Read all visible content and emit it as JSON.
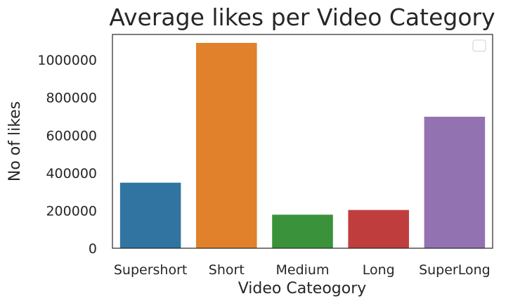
{
  "chart_data": {
    "type": "bar",
    "title": "Average likes per Video Category",
    "xlabel": "Video Cateogory",
    "ylabel": "No of likes",
    "categories": [
      "Supershort",
      "Short",
      "Medium",
      "Long",
      "SuperLong"
    ],
    "values": [
      348000,
      1090000,
      178000,
      203000,
      698000
    ],
    "colors": [
      "#3274a1",
      "#e1812c",
      "#3a923a",
      "#c03d3e",
      "#9372b2"
    ],
    "ylim": [
      0,
      1090000
    ],
    "yticks": [
      0,
      200000,
      400000,
      600000,
      800000,
      1000000
    ],
    "ytick_labels": [
      "0",
      "200000",
      "400000",
      "600000",
      "800000",
      "1000000"
    ],
    "grid": false,
    "legend": {
      "placement": "top-right",
      "entries": []
    }
  }
}
